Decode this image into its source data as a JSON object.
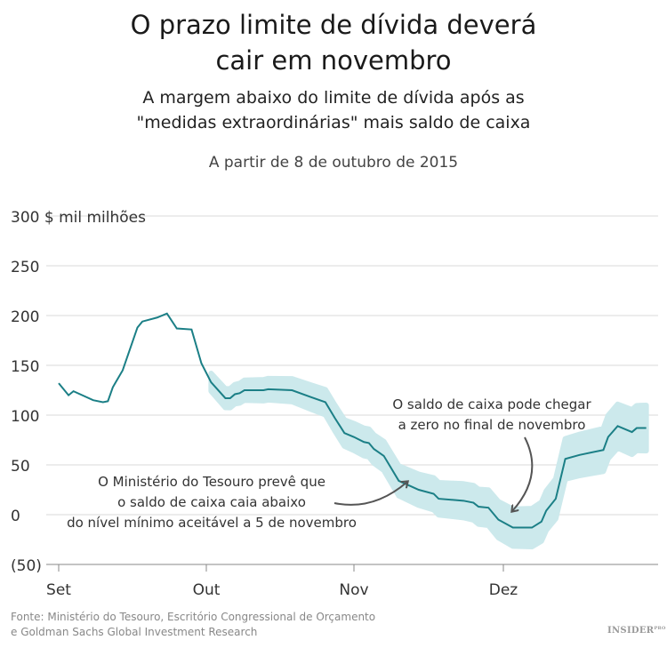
{
  "title": "O prazo limite de dívida deverá cair em novembro",
  "title_lines": [
    "O prazo limite de dívida deverá",
    "cair em novembro"
  ],
  "subtitle_lines": [
    "A margem abaixo do limite de dívida após as",
    "\"medidas extraordinárias\" mais saldo de caixa"
  ],
  "date_note": "A partir de 8 de outubro de 2015",
  "source_lines": [
    "Fonte: Ministério do Tesouro, Escritório Congressional de Orçamento",
    "e Goldman Sachs Global Investment Research"
  ],
  "logo": "INSIDER PRO",
  "colors": {
    "line": "#1b7f86",
    "band": "#cce9ec",
    "grid": "#e6e6e6",
    "annotation": "#555555"
  },
  "chart_data": {
    "type": "line",
    "ylabel": "$ mil milhões",
    "ylim": [
      -50,
      300
    ],
    "yticks": [
      300,
      250,
      200,
      150,
      100,
      50,
      0,
      -50
    ],
    "ytick_labels": [
      "300 $ mil milhões",
      "250",
      "200",
      "150",
      "100",
      "50",
      "0",
      "(50)"
    ],
    "xtick_labels": [
      "Set",
      "Out",
      "Nov",
      "Dez"
    ],
    "xticks": [
      "2015-09-01",
      "2015-10-01",
      "2015-11-01",
      "2015-12-01"
    ],
    "grid": true,
    "series": [
      {
        "x": [
          "2015-09-01",
          "2015-09-03",
          "2015-09-04",
          "2015-09-08",
          "2015-09-10",
          "2015-09-11",
          "2015-09-12",
          "2015-09-14",
          "2015-09-17",
          "2015-09-18",
          "2015-09-21",
          "2015-09-23",
          "2015-09-25",
          "2015-09-28",
          "2015-09-30",
          "2015-10-02",
          "2015-10-05",
          "2015-10-06",
          "2015-10-07",
          "2015-10-08",
          "2015-10-09",
          "2015-10-13",
          "2015-10-14",
          "2015-10-19",
          "2015-10-23",
          "2015-10-26",
          "2015-10-28",
          "2015-10-30",
          "2015-11-01",
          "2015-11-03",
          "2015-11-04",
          "2015-11-05",
          "2015-11-07",
          "2015-11-10",
          "2015-11-14",
          "2015-11-17",
          "2015-11-18",
          "2015-11-23",
          "2015-11-25",
          "2015-11-26",
          "2015-11-28",
          "2015-11-30",
          "2015-12-03",
          "2015-12-07",
          "2015-12-09",
          "2015-12-10",
          "2015-12-12",
          "2015-12-14",
          "2015-12-17",
          "2015-12-18",
          "2015-12-22",
          "2015-12-23",
          "2015-12-25",
          "2015-12-28",
          "2015-12-29",
          "2015-12-30",
          "2015-12-31"
        ],
        "y": [
          132,
          120,
          124,
          115,
          113,
          114,
          128,
          145,
          188,
          194,
          198,
          202,
          187,
          186,
          152,
          133,
          117,
          117,
          121,
          122,
          125,
          125,
          126,
          125,
          118,
          113,
          97,
          82,
          78,
          73,
          72,
          66,
          59,
          34,
          25,
          21,
          16,
          14,
          12,
          8,
          7,
          -5,
          -13,
          -13,
          -7,
          4,
          16,
          56,
          60,
          61,
          65,
          78,
          89,
          83,
          87,
          87,
          87
        ]
      }
    ],
    "uncertainty_band_start": "2015-10-02",
    "annotations": [
      {
        "lines": [
          "O Ministério do Tesouro prevê que",
          "o saldo de caixa caia abaixo",
          "do nível mínimo aceitável a 5 de novembro"
        ]
      },
      {
        "lines": [
          "O saldo de caixa pode chegar",
          "a zero no final de novembro"
        ]
      }
    ]
  }
}
